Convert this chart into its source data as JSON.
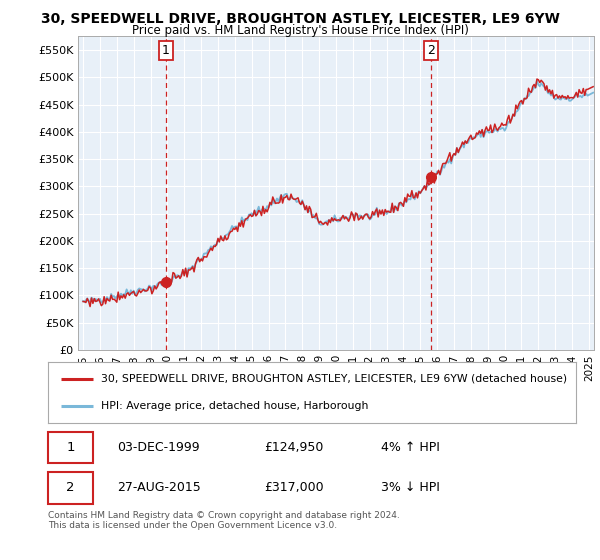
{
  "title": "30, SPEEDWELL DRIVE, BROUGHTON ASTLEY, LEICESTER, LE9 6YW",
  "subtitle": "Price paid vs. HM Land Registry's House Price Index (HPI)",
  "legend_line1": "30, SPEEDWELL DRIVE, BROUGHTON ASTLEY, LEICESTER, LE9 6YW (detached house)",
  "legend_line2": "HPI: Average price, detached house, Harborough",
  "transaction1_date": "03-DEC-1999",
  "transaction1_price": "£124,950",
  "transaction1_hpi": "4% ↑ HPI",
  "transaction2_date": "27-AUG-2015",
  "transaction2_price": "£317,000",
  "transaction2_hpi": "3% ↓ HPI",
  "copyright": "Contains HM Land Registry data © Crown copyright and database right 2024.\nThis data is licensed under the Open Government Licence v3.0.",
  "xmin": 1994.7,
  "xmax": 2025.3,
  "ymin": 0,
  "ymax": 575000,
  "yticks": [
    0,
    50000,
    100000,
    150000,
    200000,
    250000,
    300000,
    350000,
    400000,
    450000,
    500000,
    550000
  ],
  "ytick_labels": [
    "£0",
    "£50K",
    "£100K",
    "£150K",
    "£200K",
    "£250K",
    "£300K",
    "£350K",
    "£400K",
    "£450K",
    "£500K",
    "£550K"
  ],
  "hpi_color": "#7ab8d9",
  "price_color": "#cc2222",
  "marker1_date": 1999.92,
  "marker1_price": 124950,
  "marker2_date": 2015.65,
  "marker2_price": 317000,
  "bg_color": "#ffffff",
  "chart_bg_color": "#e8f0f8",
  "grid_color": "#ffffff"
}
